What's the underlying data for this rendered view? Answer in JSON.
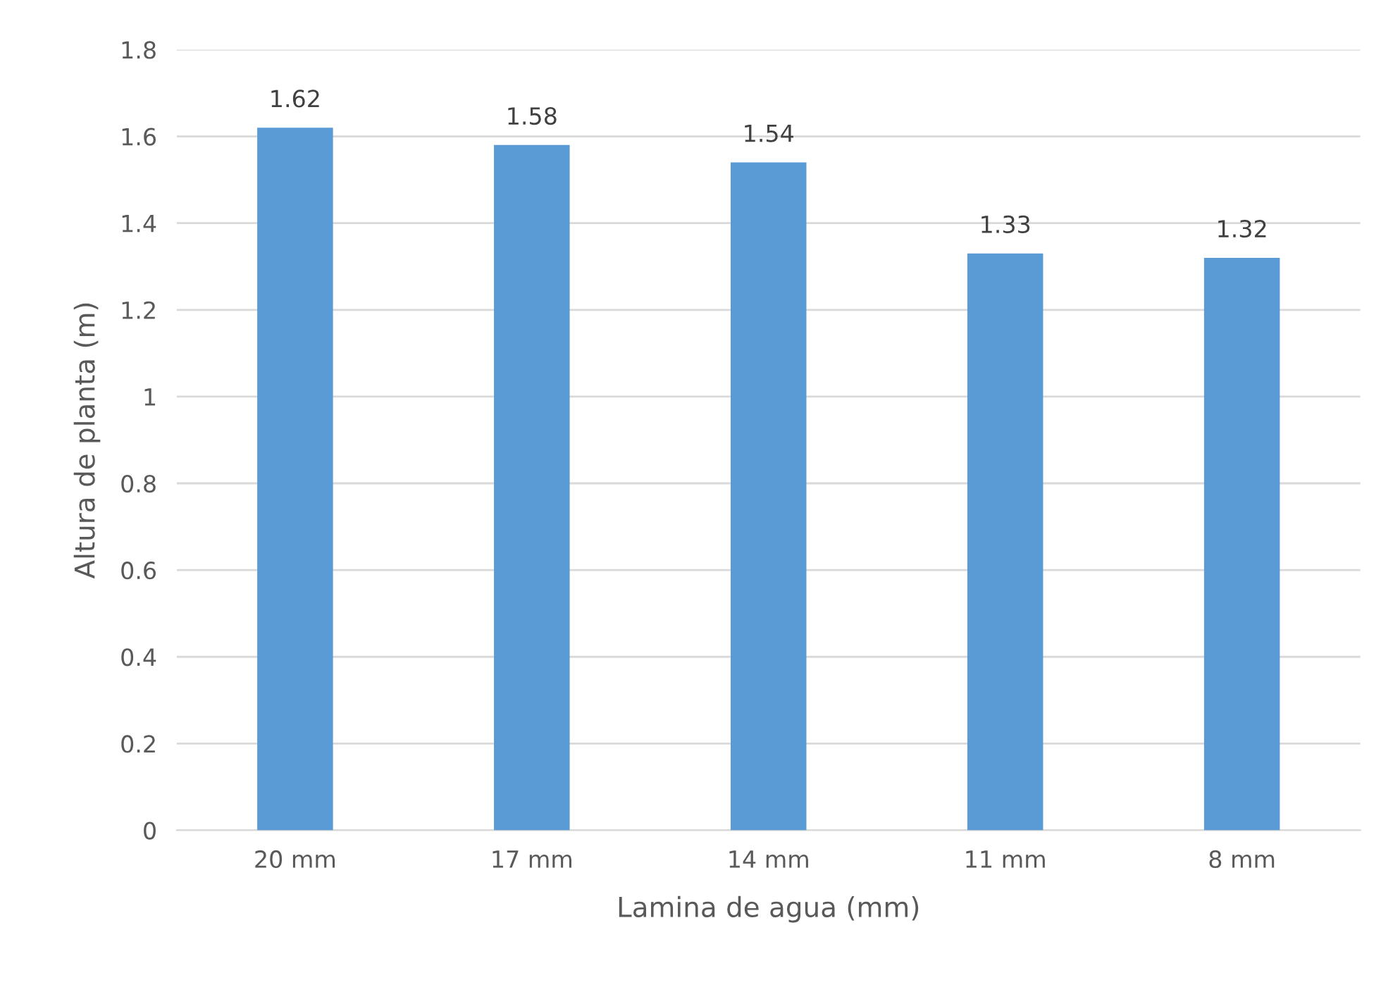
{
  "chart_data": {
    "type": "bar",
    "xlabel": "Lamina de agua (mm)",
    "ylabel": "Altura de planta (m)",
    "categories": [
      "20 mm",
      "17 mm",
      "14 mm",
      "11 mm",
      "8 mm"
    ],
    "values": [
      1.62,
      1.58,
      1.54,
      1.33,
      1.32
    ],
    "color": "#5b9bd5",
    "ylim": [
      0,
      1.8
    ],
    "yticks": [
      0,
      0.2,
      0.4,
      0.6,
      0.8,
      1,
      1.2,
      1.4,
      1.6,
      1.8
    ],
    "grid": "y",
    "data_labels": true
  }
}
